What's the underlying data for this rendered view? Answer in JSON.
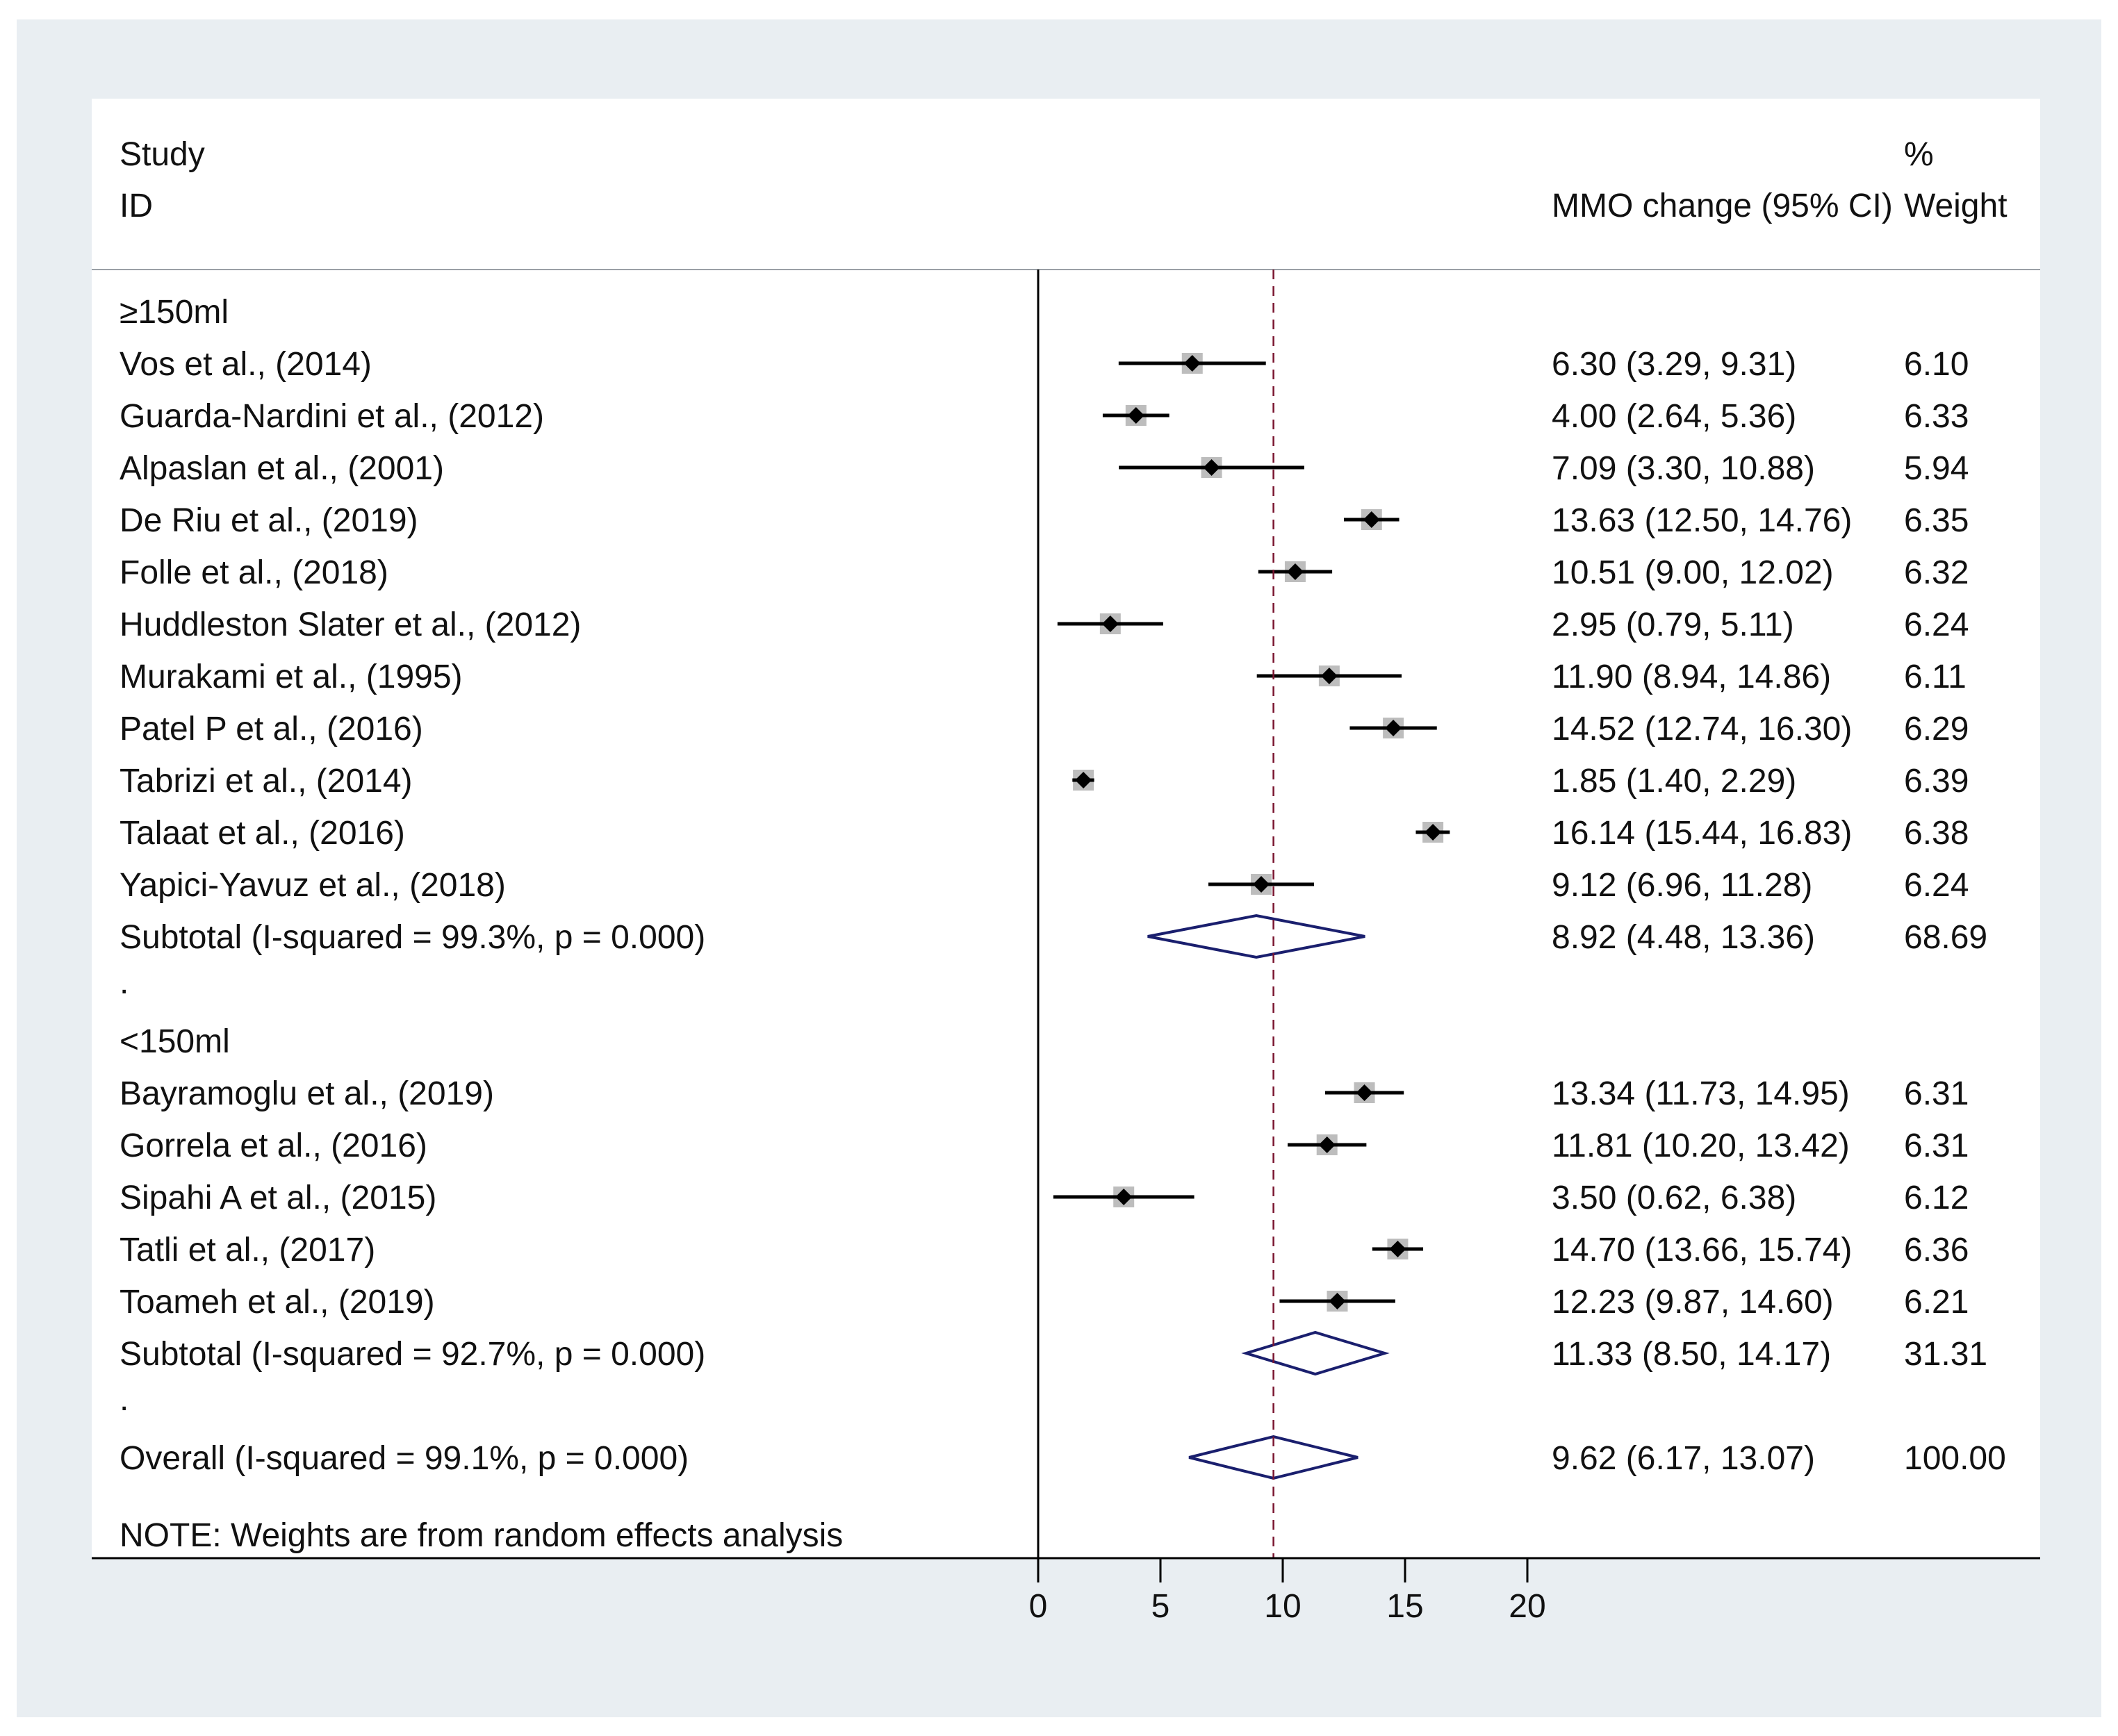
{
  "chart_data": {
    "type": "forest",
    "header": {
      "study_line1": "Study",
      "study_line2": "ID",
      "effect_label": "MMO change (95% CI)",
      "weight_line1": "%",
      "weight_line2": "Weight"
    },
    "reference_line": 9.62,
    "null_line": 0,
    "xlim": [
      0,
      20
    ],
    "xticks": [
      0,
      5,
      10,
      15,
      20
    ],
    "colors": {
      "marker": "#000000",
      "weight_box": "#bdbdbd",
      "diamond": "#1a1f6e",
      "reference": "#7a1530",
      "panel": "#e9eef2"
    },
    "groups": [
      {
        "label": "≥150ml",
        "studies": [
          {
            "name": "Vos  et al., (2014)",
            "est": 6.3,
            "lo": 3.29,
            "hi": 9.31,
            "ci_text": "6.30 (3.29, 9.31)",
            "weight": "6.10"
          },
          {
            "name": "Guarda-Nardini et al., (2012)",
            "est": 4.0,
            "lo": 2.64,
            "hi": 5.36,
            "ci_text": "4.00 (2.64, 5.36)",
            "weight": "6.33"
          },
          {
            "name": "Alpaslan et al., (2001)",
            "est": 7.09,
            "lo": 3.3,
            "hi": 10.88,
            "ci_text": "7.09 (3.30, 10.88)",
            "weight": "5.94"
          },
          {
            "name": "De Riu et al., (2019)",
            "est": 13.63,
            "lo": 12.5,
            "hi": 14.76,
            "ci_text": "13.63 (12.50, 14.76)",
            "weight": "6.35"
          },
          {
            "name": "Folle et al., (2018)",
            "est": 10.51,
            "lo": 9.0,
            "hi": 12.02,
            "ci_text": "10.51 (9.00, 12.02)",
            "weight": "6.32"
          },
          {
            "name": "Huddleston Slater et al., (2012)",
            "est": 2.95,
            "lo": 0.79,
            "hi": 5.11,
            "ci_text": "2.95 (0.79, 5.11)",
            "weight": "6.24"
          },
          {
            "name": "Murakami et al., (1995)",
            "est": 11.9,
            "lo": 8.94,
            "hi": 14.86,
            "ci_text": "11.90 (8.94, 14.86)",
            "weight": "6.11"
          },
          {
            "name": "Patel P et al., (2016)",
            "est": 14.52,
            "lo": 12.74,
            "hi": 16.3,
            "ci_text": "14.52 (12.74, 16.30)",
            "weight": "6.29"
          },
          {
            "name": "Tabrizi  et al., (2014)",
            "est": 1.85,
            "lo": 1.4,
            "hi": 2.29,
            "ci_text": "1.85 (1.40, 2.29)",
            "weight": "6.39"
          },
          {
            "name": "Talaat  et al., (2016)",
            "est": 16.14,
            "lo": 15.44,
            "hi": 16.83,
            "ci_text": "16.14 (15.44, 16.83)",
            "weight": "6.38"
          },
          {
            "name": "Yapici-Yavuz  et al., (2018)",
            "est": 9.12,
            "lo": 6.96,
            "hi": 11.28,
            "ci_text": "9.12 (6.96, 11.28)",
            "weight": "6.24"
          }
        ],
        "subtotal": {
          "label": "Subtotal  (I-squared = 99.3%, p = 0.000)",
          "est": 8.92,
          "lo": 4.48,
          "hi": 13.36,
          "ci_text": "8.92 (4.48, 13.36)",
          "weight": "68.69"
        }
      },
      {
        "label": "<150ml",
        "studies": [
          {
            "name": "Bayramoglu et al., (2019)",
            "est": 13.34,
            "lo": 11.73,
            "hi": 14.95,
            "ci_text": "13.34 (11.73, 14.95)",
            "weight": "6.31"
          },
          {
            "name": "Gorrela  et al., (2016)",
            "est": 11.81,
            "lo": 10.2,
            "hi": 13.42,
            "ci_text": "11.81 (10.20, 13.42)",
            "weight": "6.31"
          },
          {
            "name": "Sipahi A et al., (2015)",
            "est": 3.5,
            "lo": 0.62,
            "hi": 6.38,
            "ci_text": "3.50 (0.62, 6.38)",
            "weight": "6.12"
          },
          {
            "name": "Tatli  et al., (2017)",
            "est": 14.7,
            "lo": 13.66,
            "hi": 15.74,
            "ci_text": "14.70 (13.66, 15.74)",
            "weight": "6.36"
          },
          {
            "name": "Toameh et al., (2019)",
            "est": 12.23,
            "lo": 9.87,
            "hi": 14.6,
            "ci_text": "12.23 (9.87, 14.60)",
            "weight": "6.21"
          }
        ],
        "subtotal": {
          "label": "Subtotal  (I-squared = 92.7%, p = 0.000)",
          "est": 11.33,
          "lo": 8.5,
          "hi": 14.17,
          "ci_text": "11.33 (8.50, 14.17)",
          "weight": "31.31"
        }
      }
    ],
    "separator_text": ".",
    "overall": {
      "label": "Overall  (I-squared = 99.1%, p = 0.000)",
      "est": 9.62,
      "lo": 6.17,
      "hi": 13.07,
      "ci_text": "9.62 (6.17, 13.07)",
      "weight": "100.00"
    },
    "note": "NOTE: Weights are from random effects analysis"
  }
}
